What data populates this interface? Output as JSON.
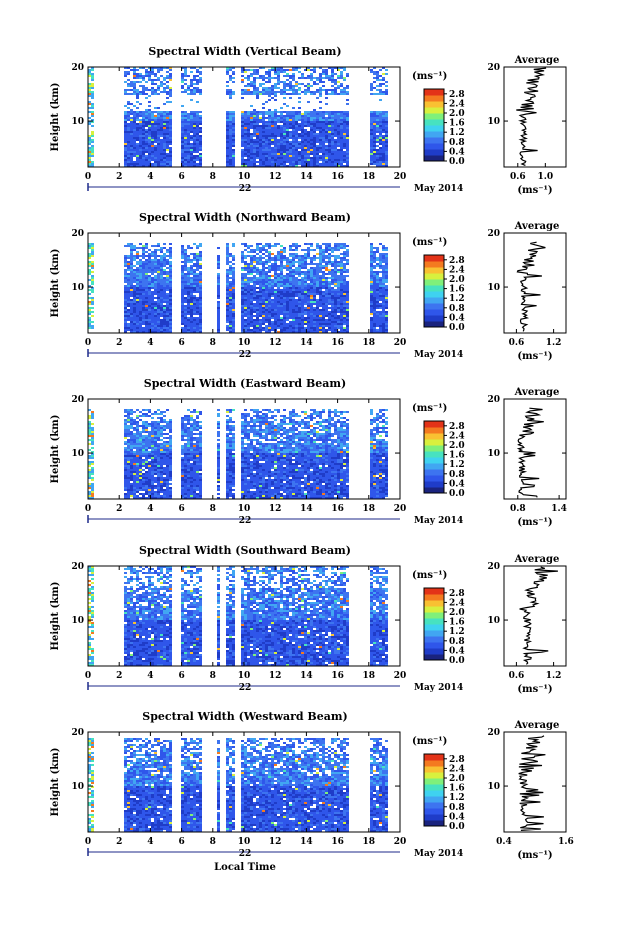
{
  "colors": {
    "scale": [
      "#1a237e",
      "#1f3cc8",
      "#2f56ea",
      "#3d74f0",
      "#41a6f2",
      "#3fd2f0",
      "#47e2c0",
      "#7ff07a",
      "#d8f03e",
      "#f9c132",
      "#f47a20",
      "#e33318"
    ],
    "background": "#ffffff",
    "line": "#000000"
  },
  "chart_data": [
    {
      "type": "heatmap",
      "title": "Spectral Width (Vertical Beam)",
      "ylabel": "Height (km)",
      "xlim": [
        0,
        20
      ],
      "ylim": [
        1.5,
        20
      ],
      "x_ticks": [
        "0",
        "2",
        "4",
        "6",
        "8",
        "10",
        "12",
        "14",
        "16",
        "18",
        "20"
      ],
      "y_ticks": [
        10,
        20
      ],
      "date_day": "22",
      "date_month": "May 2014",
      "colorbar": {
        "unit": "(ms⁻¹)",
        "ticks": [
          "0.0",
          "0.4",
          "0.8",
          "1.2",
          "1.6",
          "2.0",
          "2.4",
          "2.8"
        ],
        "range": [
          0,
          3.0
        ]
      },
      "no_data_intervals": [
        [
          0.4,
          2.3
        ],
        [
          5.4,
          5.9
        ],
        [
          7.4,
          8.2
        ],
        [
          8.3,
          8.9
        ],
        [
          9.4,
          9.8
        ],
        [
          16.7,
          18.0
        ],
        [
          19.2,
          20
        ]
      ],
      "data_top_km": 20,
      "void_band_km": [
        12,
        15
      ],
      "average": {
        "title": "Average",
        "unit": "(ms⁻¹)",
        "xlim": [
          0.4,
          1.3
        ],
        "x_ticks": [
          "0.6",
          "1.0"
        ],
        "y_ticks": [
          10,
          20
        ],
        "mean": 0.68,
        "spread": 0.14
      }
    },
    {
      "type": "heatmap",
      "title": "Spectral Width (Northward Beam)",
      "ylabel": "Height (km)",
      "xlim": [
        0,
        20
      ],
      "ylim": [
        1.5,
        20
      ],
      "x_ticks": [
        "0",
        "2",
        "4",
        "6",
        "8",
        "10",
        "12",
        "14",
        "16",
        "18",
        "20"
      ],
      "y_ticks": [
        10,
        20
      ],
      "date_day": "22",
      "date_month": "May 2014",
      "colorbar": {
        "unit": "(ms⁻¹)",
        "ticks": [
          "0.0",
          "0.4",
          "0.8",
          "1.2",
          "1.6",
          "2.0",
          "2.4",
          "2.8"
        ],
        "range": [
          0,
          3.0
        ]
      },
      "no_data_intervals": [
        [
          0.4,
          2.3
        ],
        [
          5.4,
          5.9
        ],
        [
          7.4,
          8.2
        ],
        [
          8.5,
          8.9
        ],
        [
          9.4,
          9.8
        ],
        [
          16.7,
          18.0
        ],
        [
          19.2,
          20
        ]
      ],
      "data_top_km": 18,
      "void_band_km": null,
      "average": {
        "title": "Average",
        "unit": "(ms⁻¹)",
        "xlim": [
          0.4,
          1.4
        ],
        "x_ticks": [
          "0.6",
          "1.2"
        ],
        "y_ticks": [
          10,
          20
        ],
        "mean": 0.72,
        "spread": 0.16
      }
    },
    {
      "type": "heatmap",
      "title": "Spectral Width (Eastward Beam)",
      "ylabel": "Height (km)",
      "xlim": [
        0,
        20
      ],
      "ylim": [
        1.5,
        20
      ],
      "x_ticks": [
        "0",
        "2",
        "4",
        "6",
        "8",
        "10",
        "12",
        "14",
        "16",
        "18",
        "20"
      ],
      "y_ticks": [
        10,
        20
      ],
      "date_day": "22",
      "date_month": "May 2014",
      "colorbar": {
        "unit": "(ms⁻¹)",
        "ticks": [
          "0.0",
          "0.4",
          "0.8",
          "1.2",
          "1.6",
          "2.0",
          "2.4",
          "2.8"
        ],
        "range": [
          0,
          3.0
        ]
      },
      "no_data_intervals": [
        [
          0.4,
          2.3
        ],
        [
          5.4,
          5.9
        ],
        [
          7.4,
          8.2
        ],
        [
          8.5,
          8.9
        ],
        [
          9.4,
          9.8
        ],
        [
          16.7,
          18.0
        ],
        [
          19.2,
          20
        ]
      ],
      "data_top_km": 18,
      "void_band_km": null,
      "average": {
        "title": "Average",
        "unit": "(ms⁻¹)",
        "xlim": [
          0.6,
          1.5
        ],
        "x_ticks": [
          "0.8",
          "1.4"
        ],
        "y_ticks": [
          10,
          20
        ],
        "mean": 0.86,
        "spread": 0.14
      }
    },
    {
      "type": "heatmap",
      "title": "Spectral Width (Southward Beam)",
      "ylabel": "Height (km)",
      "xlim": [
        0,
        20
      ],
      "ylim": [
        1.5,
        20
      ],
      "x_ticks": [
        "0",
        "2",
        "4",
        "6",
        "8",
        "10",
        "12",
        "14",
        "16",
        "18",
        "20"
      ],
      "y_ticks": [
        10,
        20
      ],
      "date_day": "22",
      "date_month": "May 2014",
      "colorbar": {
        "unit": "(ms⁻¹)",
        "ticks": [
          "0.0",
          "0.4",
          "0.8",
          "1.2",
          "1.6",
          "2.0",
          "2.4",
          "2.8"
        ],
        "range": [
          0,
          3.0
        ]
      },
      "no_data_intervals": [
        [
          0.4,
          2.3
        ],
        [
          5.4,
          5.9
        ],
        [
          7.4,
          8.2
        ],
        [
          8.5,
          8.9
        ],
        [
          9.4,
          9.8
        ],
        [
          16.7,
          18.0
        ],
        [
          19.2,
          20
        ]
      ],
      "data_top_km": 20,
      "void_band_km": null,
      "average": {
        "title": "Average",
        "unit": "(ms⁻¹)",
        "xlim": [
          0.4,
          1.4
        ],
        "x_ticks": [
          "0.6",
          "1.2"
        ],
        "y_ticks": [
          10,
          20
        ],
        "mean": 0.78,
        "spread": 0.18
      }
    },
    {
      "type": "heatmap",
      "title": "Spectral Width (Westward Beam)",
      "ylabel": "Height (km)",
      "xlabel": "Local Time",
      "xlim": [
        0,
        20
      ],
      "ylim": [
        1.5,
        20
      ],
      "x_ticks": [
        "0",
        "2",
        "4",
        "6",
        "8",
        "10",
        "12",
        "14",
        "16",
        "18",
        "20"
      ],
      "y_ticks": [
        10,
        20
      ],
      "date_day": "22",
      "date_month": "May 2014",
      "colorbar": {
        "unit": "(ms⁻¹)",
        "ticks": [
          "0.0",
          "0.4",
          "0.8",
          "1.2",
          "1.6",
          "2.0",
          "2.4",
          "2.8"
        ],
        "range": [
          0,
          3.0
        ]
      },
      "no_data_intervals": [
        [
          0.4,
          2.3
        ],
        [
          5.4,
          5.9
        ],
        [
          7.4,
          8.2
        ],
        [
          8.5,
          8.9
        ],
        [
          9.4,
          9.8
        ],
        [
          16.7,
          18.0
        ],
        [
          19.2,
          20
        ]
      ],
      "data_top_km": 19,
      "void_band_km": null,
      "average": {
        "title": "Average",
        "unit": "(ms⁻¹)",
        "xlim": [
          0.4,
          1.6
        ],
        "x_ticks": [
          "0.4",
          "1.6"
        ],
        "y_ticks": [
          10,
          20
        ],
        "mean": 0.78,
        "spread": 0.22
      }
    }
  ]
}
